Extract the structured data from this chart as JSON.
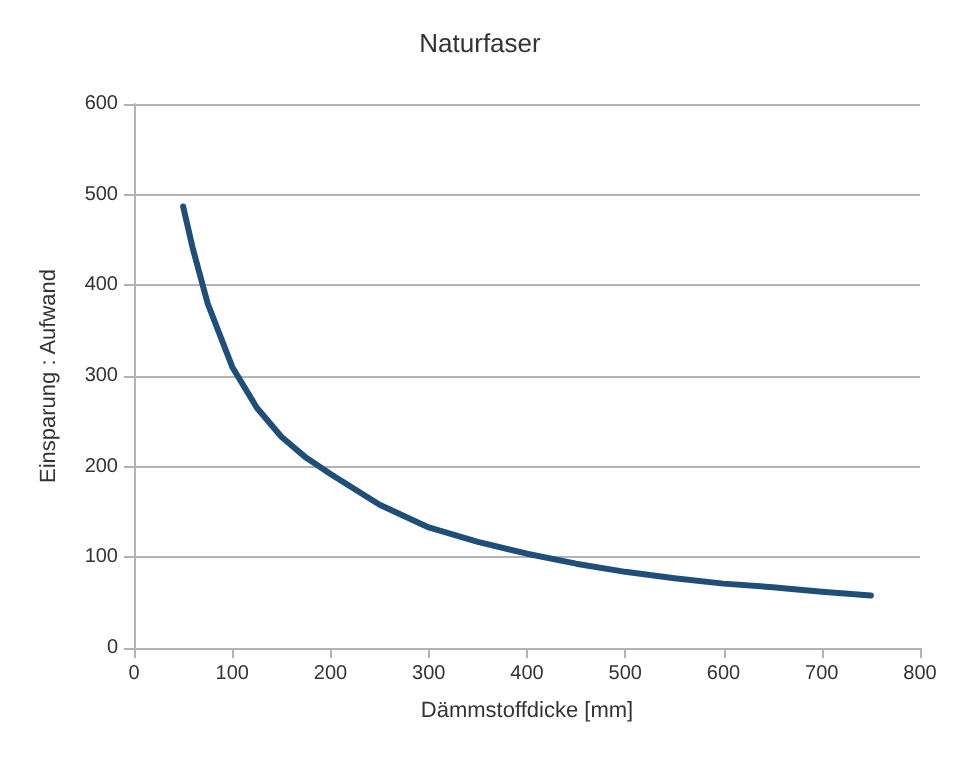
{
  "chart_data": {
    "type": "line",
    "title": "Naturfaser",
    "xlabel": "Dämmstoffdicke [mm]",
    "ylabel": "Einsparung : Aufwand",
    "x": [
      50,
      60,
      75,
      100,
      125,
      150,
      175,
      200,
      250,
      300,
      350,
      400,
      450,
      500,
      550,
      600,
      650,
      700,
      750
    ],
    "series": [
      {
        "color": "#1f4e79",
        "values": [
          487,
          440,
          380,
          310,
          265,
          233,
          210,
          192,
          158,
          133,
          117,
          104,
          93,
          84,
          77,
          71,
          67,
          62,
          58
        ]
      }
    ],
    "xlim": [
      0,
      800
    ],
    "xticks": [
      0,
      100,
      200,
      300,
      400,
      500,
      600,
      700,
      800
    ],
    "ylim": [
      0,
      600
    ],
    "yticks": [
      0,
      100,
      200,
      300,
      400,
      500,
      600
    ],
    "grid": "y",
    "legend": false,
    "marker": "none",
    "line_style": "solid"
  }
}
